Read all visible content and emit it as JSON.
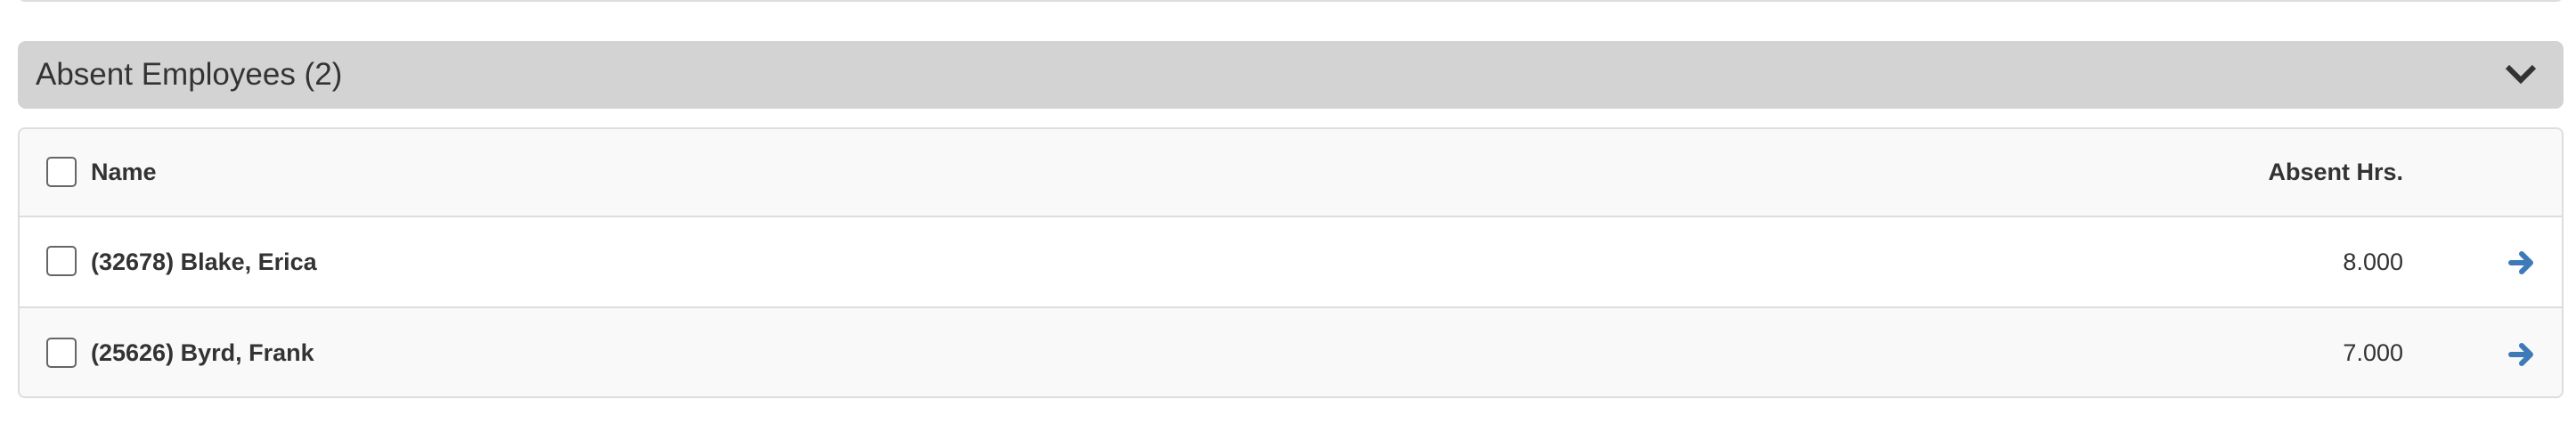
{
  "section": {
    "title": "Absent Employees (2)",
    "toggle_icon": "chevron-down-icon"
  },
  "table": {
    "columns": {
      "name": "Name",
      "absent_hrs": "Absent Hrs."
    },
    "rows": [
      {
        "name": "(32678) Blake, Erica",
        "absent_hrs": "8.000",
        "action_icon": "arrow-right-icon"
      },
      {
        "name": "(25626) Byrd, Frank",
        "absent_hrs": "7.000",
        "action_icon": "arrow-right-icon"
      }
    ]
  },
  "colors": {
    "header_bg": "#d3d3d3",
    "arrow": "#3f7ab8",
    "text": "#333333"
  }
}
